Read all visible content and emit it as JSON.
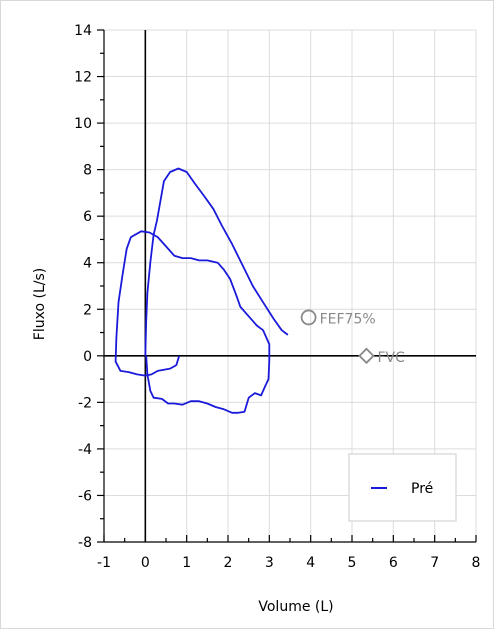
{
  "chart_data": {
    "type": "line",
    "xlabel": "Volume (L)",
    "ylabel": "Fluxo (L/s)",
    "xlim": [
      -1,
      8
    ],
    "ylim": [
      -8,
      14
    ],
    "x_ticks": [
      "-1",
      "0",
      "1",
      "2",
      "3",
      "4",
      "5",
      "6",
      "7",
      "8"
    ],
    "y_ticks": [
      "14",
      "12",
      "10",
      "8",
      "6",
      "4",
      "2",
      "0",
      "-2",
      "-4",
      "-6",
      "-8"
    ],
    "grid": true,
    "legend_position": "bottom-right",
    "series": [
      {
        "name": "Pré",
        "color": "#1a1adb",
        "loops": [
          [
            [
              0.82,
              0.0
            ],
            [
              0.75,
              -0.4
            ],
            [
              0.6,
              -0.55
            ],
            [
              0.45,
              -0.6
            ],
            [
              0.3,
              -0.65
            ],
            [
              0.15,
              -0.8
            ],
            [
              0.0,
              -0.85
            ],
            [
              -0.2,
              -0.8
            ],
            [
              -0.4,
              -0.7
            ],
            [
              -0.6,
              -0.65
            ],
            [
              -0.72,
              -0.25
            ],
            [
              -0.7,
              0.8
            ],
            [
              -0.65,
              2.3
            ],
            [
              -0.55,
              3.5
            ],
            [
              -0.45,
              4.6
            ],
            [
              -0.35,
              5.1
            ],
            [
              -0.25,
              5.2
            ],
            [
              -0.1,
              5.35
            ],
            [
              0.1,
              5.3
            ],
            [
              0.3,
              5.1
            ],
            [
              0.5,
              4.7
            ],
            [
              0.7,
              4.3
            ],
            [
              0.9,
              4.2
            ],
            [
              1.1,
              4.2
            ],
            [
              1.3,
              4.1
            ],
            [
              1.5,
              4.1
            ],
            [
              1.75,
              4.0
            ],
            [
              1.9,
              3.7
            ],
            [
              2.05,
              3.3
            ],
            [
              2.2,
              2.6
            ],
            [
              2.3,
              2.1
            ],
            [
              2.5,
              1.7
            ],
            [
              2.7,
              1.3
            ],
            [
              2.85,
              1.1
            ],
            [
              3.0,
              0.5
            ],
            [
              3.0,
              -0.2
            ],
            [
              2.98,
              -1.0
            ],
            [
              2.9,
              -1.3
            ],
            [
              2.8,
              -1.7
            ],
            [
              2.65,
              -1.6
            ],
            [
              2.5,
              -1.8
            ],
            [
              2.4,
              -2.4
            ],
            [
              2.25,
              -2.45
            ],
            [
              2.1,
              -2.45
            ],
            [
              1.9,
              -2.3
            ],
            [
              1.7,
              -2.2
            ],
            [
              1.5,
              -2.05
            ],
            [
              1.3,
              -1.95
            ],
            [
              1.1,
              -1.95
            ],
            [
              0.9,
              -2.1
            ],
            [
              0.7,
              -2.05
            ],
            [
              0.55,
              -2.05
            ],
            [
              0.4,
              -1.85
            ],
            [
              0.2,
              -1.8
            ],
            [
              0.12,
              -1.5
            ],
            [
              0.05,
              -0.8
            ],
            [
              0.02,
              0.0
            ]
          ],
          [
            [
              0.0,
              0.0
            ],
            [
              0.02,
              1.5
            ],
            [
              0.05,
              2.7
            ],
            [
              0.12,
              4.0
            ],
            [
              0.2,
              5.2
            ],
            [
              0.28,
              5.8
            ],
            [
              0.35,
              6.5
            ],
            [
              0.45,
              7.5
            ],
            [
              0.6,
              7.9
            ],
            [
              0.8,
              8.05
            ],
            [
              1.0,
              7.9
            ],
            [
              1.2,
              7.4
            ],
            [
              1.45,
              6.8
            ],
            [
              1.65,
              6.3
            ],
            [
              1.85,
              5.6
            ],
            [
              2.1,
              4.8
            ],
            [
              2.35,
              3.9
            ],
            [
              2.6,
              3.0
            ],
            [
              2.85,
              2.3
            ],
            [
              3.1,
              1.6
            ],
            [
              3.3,
              1.1
            ],
            [
              3.45,
              0.9
            ]
          ]
        ]
      }
    ],
    "annotations": [
      {
        "marker": "circle",
        "label": "FEF75%",
        "x": 3.95,
        "y": 1.65
      },
      {
        "marker": "diamond",
        "label": "FVC",
        "x": 5.35,
        "y": 0.0
      }
    ]
  }
}
